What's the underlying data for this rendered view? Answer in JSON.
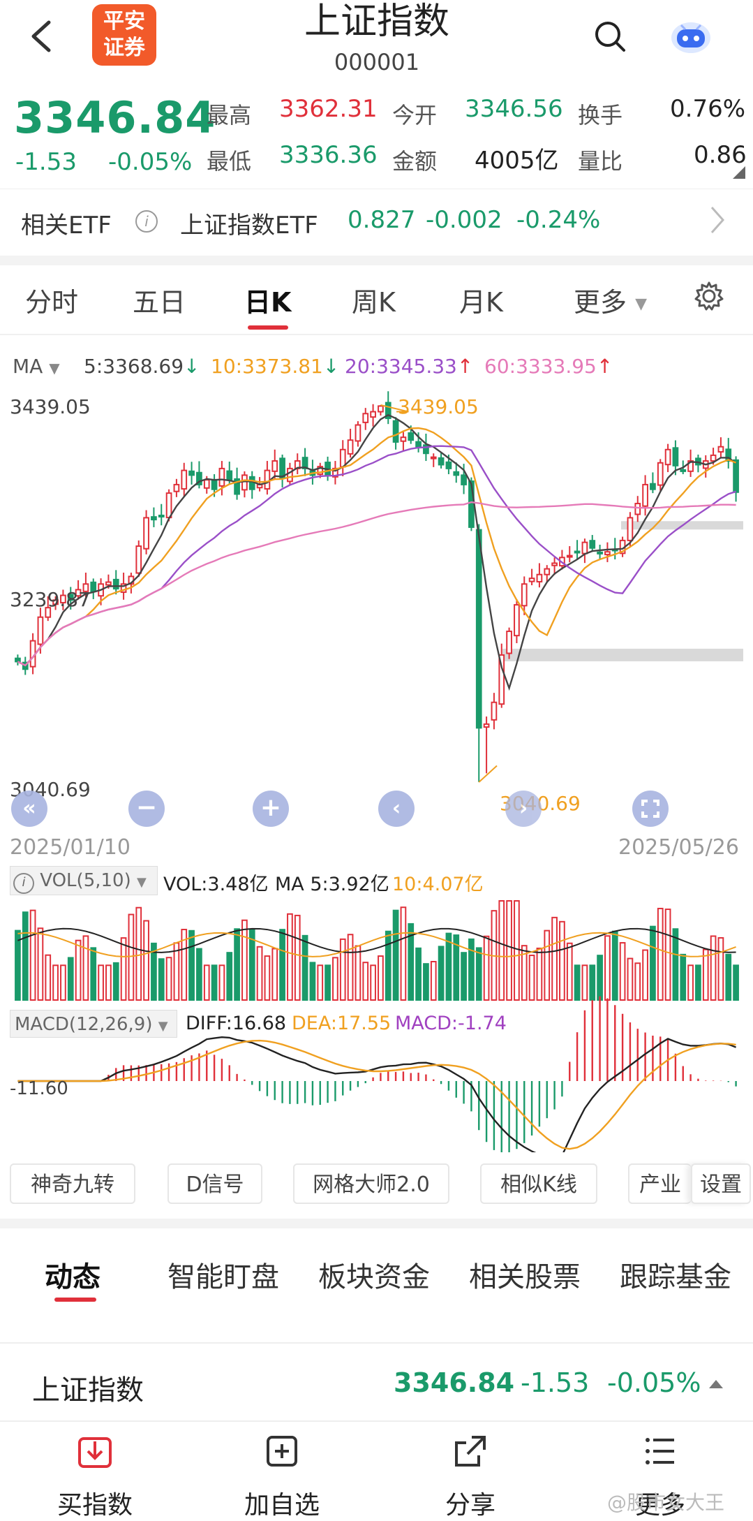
{
  "header": {
    "back_icon": "chevron-left-icon",
    "logo_line1": "平安",
    "logo_line2": "证券",
    "title": "上证指数",
    "code": "000001",
    "search_icon": "search-icon",
    "robot_icon": "robot-assistant-icon"
  },
  "quote": {
    "price": "3346.84",
    "change": "-1.53",
    "change_pct": "-0.05%",
    "high_label": "最高",
    "high": "3362.31",
    "low_label": "最低",
    "low": "3336.36",
    "open_label": "今开",
    "open": "3346.56",
    "amount_label": "金额",
    "amount": "4005亿",
    "turnover_label": "换手",
    "turnover": "0.76%",
    "volratio_label": "量比",
    "volratio": "0.86"
  },
  "etf": {
    "label": "相关ETF",
    "info_icon": "info-icon",
    "name": "上证指数ETF",
    "price": "0.827",
    "change": "-0.002",
    "change_pct": "-0.24%"
  },
  "ktabs": [
    "分时",
    "五日",
    "日K",
    "周K",
    "月K",
    "更多"
  ],
  "ma_bar": {
    "label": "MA",
    "ma5": "5:3368.69",
    "ma10": "10:3373.81",
    "ma20": "20:3345.33",
    "ma60": "60:3333.95"
  },
  "chart_data": {
    "type": "candlestick",
    "y_labels": [
      "3439.05",
      "3239.87",
      "3040.69"
    ],
    "max_label": "3439.05",
    "min_label": "3040.69",
    "date_start": "2025/01/10",
    "date_end": "2025/05/26",
    "colors": {
      "up": "#e0303a",
      "down": "#1a9a6a",
      "ma5": "#444444",
      "ma10": "#f0a020",
      "ma20": "#9a4fc8",
      "ma60": "#e57ab8"
    },
    "closes": [
      3168,
      3160,
      3190,
      3215,
      3225,
      3233,
      3238,
      3233,
      3244,
      3250,
      3242,
      3250,
      3252,
      3245,
      3250,
      3258,
      3290,
      3320,
      3318,
      3322,
      3346,
      3355,
      3370,
      3365,
      3355,
      3360,
      3350,
      3372,
      3360,
      3345,
      3365,
      3350,
      3355,
      3370,
      3380,
      3362,
      3372,
      3380,
      3372,
      3365,
      3374,
      3365,
      3372,
      3392,
      3402,
      3418,
      3430,
      3432,
      3438,
      3425,
      3400,
      3405,
      3402,
      3395,
      3388,
      3384,
      3376,
      3372,
      3365,
      3355,
      3310,
      3098,
      3102,
      3125,
      3175,
      3200,
      3228,
      3250,
      3256,
      3260,
      3266,
      3272,
      3278,
      3280,
      3284,
      3294,
      3288,
      3282,
      3284,
      3286,
      3296,
      3320,
      3335,
      3355,
      3350,
      3378,
      3392,
      3375,
      3370,
      3380,
      3376,
      3380,
      3386,
      3395,
      3380,
      3347
    ]
  },
  "chart_buttons": [
    "rewind-icon",
    "zoom-out-icon",
    "zoom-in-icon",
    "chevron-left-icon",
    "chevron-right-icon",
    "fullscreen-icon"
  ],
  "vol_bar": {
    "label": "VOL(5,10)",
    "vol": "VOL:3.48亿",
    "ma5": "MA 5:3.92亿",
    "ma10": "10:4.07亿"
  },
  "macd_bar": {
    "label": "MACD(12,26,9)",
    "diff": "DIFF:16.68",
    "dea": "DEA:17.55",
    "macd": "MACD:-1.74",
    "axis_label": "-11.60"
  },
  "tools": [
    "神奇九转",
    "D信号",
    "网格大师2.0",
    "相似K线",
    "产业",
    "设置"
  ],
  "dtabs": [
    "动态",
    "智能盯盘",
    "板块资金",
    "相关股票",
    "跟踪基金"
  ],
  "index_row": {
    "name": "上证指数",
    "price": "3346.84",
    "change": "-1.53",
    "change_pct": "-0.05%"
  },
  "nav": [
    {
      "icon": "buy-index-icon",
      "label": "买指数"
    },
    {
      "icon": "add-watchlist-icon",
      "label": "加自选"
    },
    {
      "icon": "share-icon",
      "label": "分享"
    },
    {
      "icon": "more-icon",
      "label": "更多"
    }
  ],
  "watermark": "@股市女大王"
}
